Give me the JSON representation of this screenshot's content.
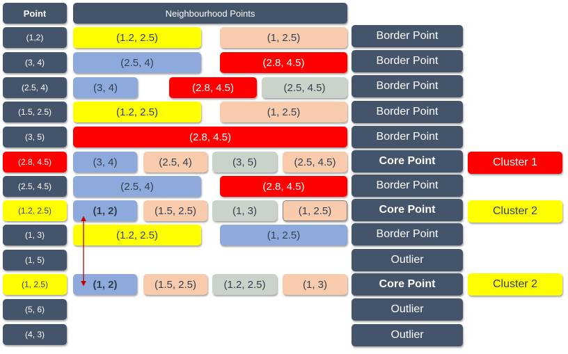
{
  "header": {
    "point": "Point",
    "neighbourhood": "Neighbourhood Points"
  },
  "rows": [
    {
      "point": "(1,2)",
      "neighbours": [
        "(1.2, 2.5)",
        "(1, 2.5)"
      ],
      "type": "Border Point",
      "cluster": ""
    },
    {
      "point": "(3, 4)",
      "neighbours": [
        "(2.5, 4)",
        "(2.8, 4.5)"
      ],
      "type": "Border Point",
      "cluster": ""
    },
    {
      "point": "(2.5, 4)",
      "neighbours": [
        "(3, 4)",
        "(2.8, 4.5)",
        "(2.5, 4.5)"
      ],
      "type": "Border Point",
      "cluster": ""
    },
    {
      "point": "(1.5, 2.5)",
      "neighbours": [
        "(1.2, 2.5)",
        "(1, 2.5)"
      ],
      "type": "Border Point",
      "cluster": ""
    },
    {
      "point": "(3, 5)",
      "neighbours": [
        "(2.8, 4.5)"
      ],
      "type": "Border Point",
      "cluster": ""
    },
    {
      "point": "(2.8, 4.5)",
      "neighbours": [
        "(3, 4)",
        "(2.5, 4)",
        "(3, 5)",
        "(2.5, 4.5)"
      ],
      "type": "Core Point",
      "cluster": "Cluster 1"
    },
    {
      "point": "(2.5, 4.5)",
      "neighbours": [
        "(2.5, 4)",
        "(2.8, 4.5)"
      ],
      "type": "Border Point",
      "cluster": ""
    },
    {
      "point": "(1.2, 2.5)",
      "neighbours": [
        "(1, 2)",
        "(1.5, 2.5)",
        "(1, 3)",
        "(1, 2.5)"
      ],
      "type": "Core Point",
      "cluster": "Cluster 2"
    },
    {
      "point": "(1, 3)",
      "neighbours": [
        "(1.2, 2.5)",
        "(1, 2.5)"
      ],
      "type": "Border Point",
      "cluster": ""
    },
    {
      "point": "(1, 5)",
      "neighbours": [],
      "type": "Outlier",
      "cluster": ""
    },
    {
      "point": "(1, 2.5)",
      "neighbours": [
        "(1, 2)",
        "(1.5, 2.5)",
        "(1.2, 2.5)",
        "(1, 3)"
      ],
      "type": "Core Point",
      "cluster": "Cluster 2"
    },
    {
      "point": "(5, 6)",
      "neighbours": [],
      "type": "Outlier",
      "cluster": ""
    },
    {
      "point": "(4, 3)",
      "neighbours": [],
      "type": "Outlier",
      "cluster": ""
    }
  ],
  "colors": {
    "dark": "#44546a",
    "yellow": "#ffff00",
    "blue": "#8ea9db",
    "peach": "#f8cbad",
    "red": "#ff0000",
    "grey": "#c9d3c9",
    "arrow": "#c00000"
  }
}
